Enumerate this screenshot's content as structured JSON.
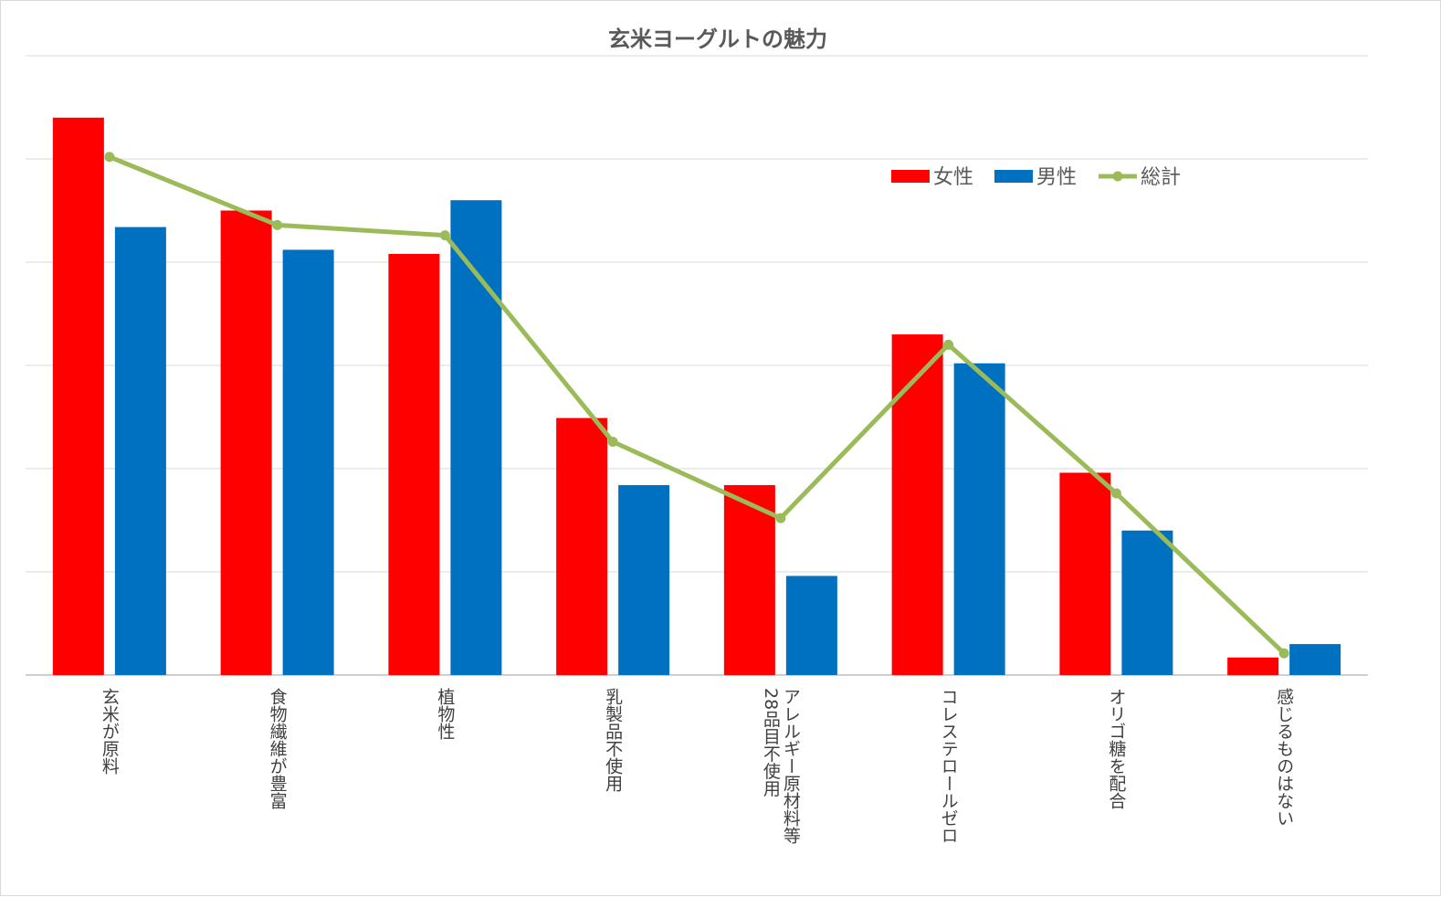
{
  "chart_data": {
    "type": "bar",
    "title": "玄米ヨーグルトの魅力",
    "categories": [
      [
        "玄米が原料"
      ],
      [
        "食物繊維が豊富"
      ],
      [
        "植物性"
      ],
      [
        "乳製品不使用"
      ],
      [
        "アレルギー原材料等",
        "28品目不使用"
      ],
      [
        "コレステロールゼロ"
      ],
      [
        "オリゴ糖を配合"
      ],
      [
        "感じるものはない"
      ]
    ],
    "series": [
      {
        "name": "女性",
        "kind": "bar",
        "color": "#ff0000",
        "values": [
          27.0,
          22.5,
          20.4,
          12.45,
          9.2,
          16.5,
          9.8,
          0.85
        ]
      },
      {
        "name": "男性",
        "kind": "bar",
        "color": "#0070c0",
        "values": [
          21.7,
          20.6,
          23.0,
          9.2,
          4.8,
          15.1,
          7.0,
          1.5
        ]
      },
      {
        "name": "総計",
        "kind": "line",
        "color": "#9bbb59",
        "values": [
          25.1,
          21.8,
          21.3,
          11.3,
          7.6,
          16.0,
          8.8,
          1.05
        ]
      }
    ],
    "ylim": [
      0,
      30
    ],
    "yticks": [
      0,
      5,
      10,
      15,
      20,
      25,
      30
    ],
    "tick_labels_shown": false,
    "grid": true,
    "legend_position": "top-right"
  }
}
